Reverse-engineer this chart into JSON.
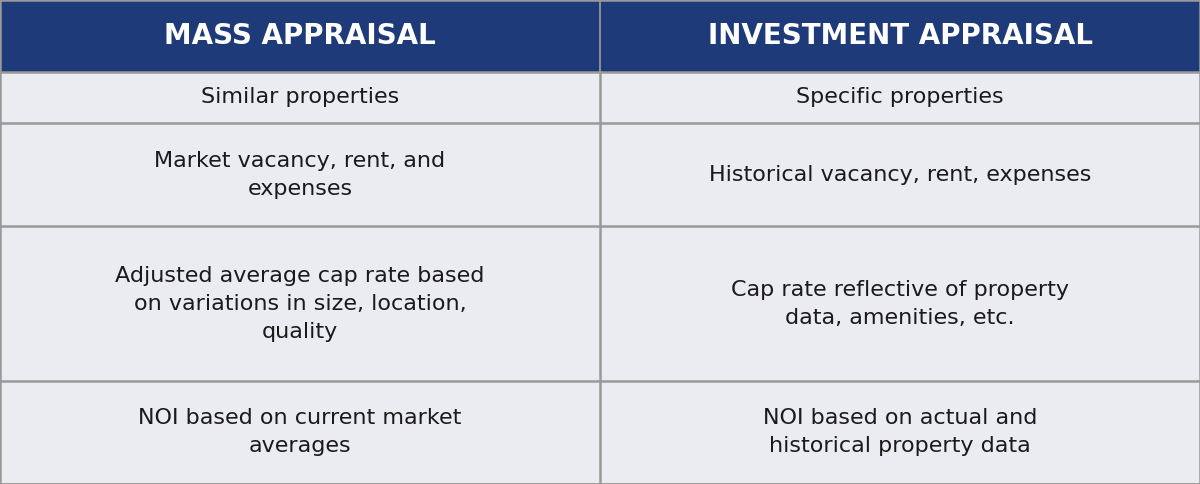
{
  "col1_header": "MASS APPRAISAL",
  "col2_header": "INVESTMENT APPRAISAL",
  "rows": [
    [
      "Similar properties",
      "Specific properties"
    ],
    [
      "Market vacancy, rent, and\nexpenses",
      "Historical vacancy, rent, expenses"
    ],
    [
      "Adjusted average cap rate based\non variations in size, location,\nquality",
      "Cap rate reflective of property\ndata, amenities, etc."
    ],
    [
      "NOI based on current market\naverages",
      "NOI based on actual and\nhistorical property data"
    ]
  ],
  "row_line_counts": [
    1,
    2,
    3,
    2
  ],
  "header_bg": "#1e3a78",
  "header_text_color": "#ffffff",
  "row_bg": "#ebebf2",
  "cell_text_color": "#1a1a1a",
  "border_color": "#999999",
  "header_fontsize": 20,
  "cell_fontsize": 16,
  "fig_width": 12.0,
  "fig_height": 4.84,
  "dpi": 100
}
